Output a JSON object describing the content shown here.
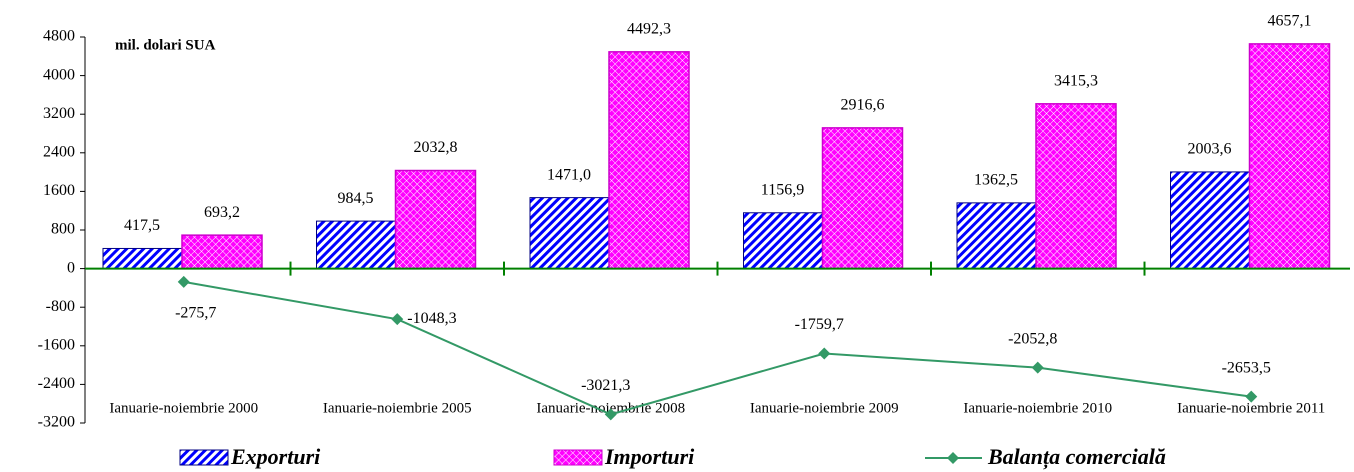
{
  "chart_data": {
    "type": "bar-line",
    "unit_label": "mil. dolari SUA",
    "categories": [
      "Ianuarie-noiembrie 2000",
      "Ianuarie-noiembrie 2005",
      "Ianuarie-noiembrie 2008",
      "Ianuarie-noiembrie 2009",
      "Ianuarie-noiembrie 2010",
      "Ianuarie-noiembrie 2011"
    ],
    "series": [
      {
        "name": "Exporturi",
        "type": "bar",
        "color": "#0000ff",
        "values": [
          417.5,
          984.5,
          1471.0,
          1156.9,
          1362.5,
          2003.6
        ],
        "value_labels": [
          "417,5",
          "984,5",
          "1471,0",
          "1156,9",
          "1362,5",
          "2003,6"
        ]
      },
      {
        "name": "Importuri",
        "type": "bar",
        "color": "#ff00ff",
        "values": [
          693.2,
          2032.8,
          4492.3,
          2916.6,
          3415.3,
          4657.1
        ],
        "value_labels": [
          "693,2",
          "2032,8",
          "4492,3",
          "2916,6",
          "3415,3",
          "4657,1"
        ]
      },
      {
        "name": "Balanța comercială",
        "type": "line",
        "color": "#339966",
        "values": [
          -275.7,
          -1048.3,
          -3021.3,
          -1759.7,
          -2052.8,
          -2653.5
        ],
        "value_labels": [
          "-275,7",
          "-1048,3",
          "-3021,3",
          "-1759,7",
          "-2052,8",
          "-2653,5"
        ]
      }
    ],
    "ylim": [
      -3200,
      4800
    ],
    "yticks": [
      -3200,
      -2400,
      -1600,
      -800,
      0,
      800,
      1600,
      2400,
      3200,
      4000,
      4800
    ]
  }
}
